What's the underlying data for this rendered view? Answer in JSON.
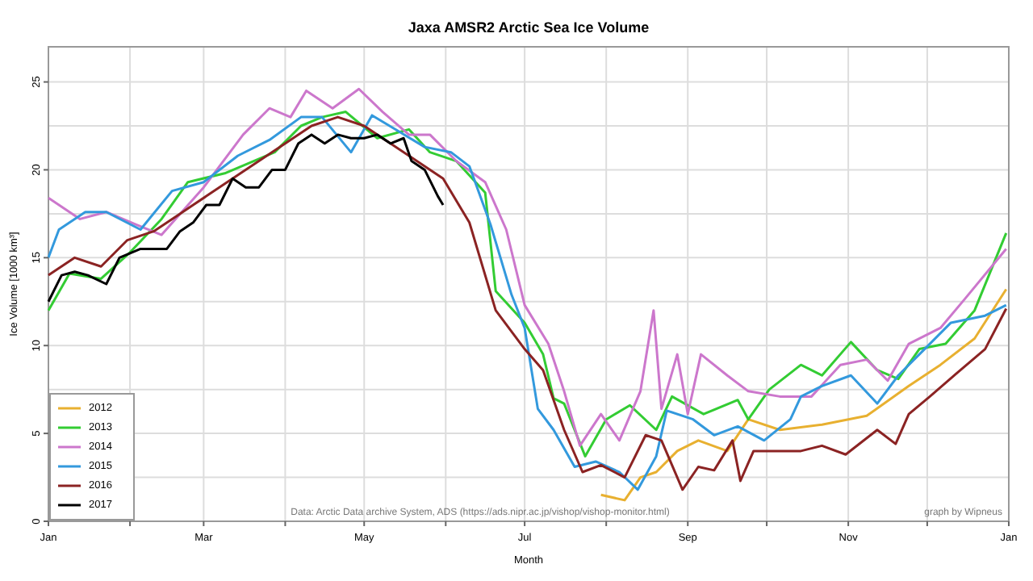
{
  "chart_data": {
    "type": "line",
    "title": "Jaxa AMSR2 Arctic Sea Ice Volume",
    "xlabel": "Month",
    "ylabel": "Ice Volume [1000 km³]",
    "annotations": [
      "Data: Arctic Data archive System, ADS (https://ads.nipr.ac.jp/vishop/vishop-monitor.html)",
      "graph by Wipneus"
    ],
    "xlim": [
      "2017-01-01",
      "2018-01-01"
    ],
    "ylim": [
      0,
      27
    ],
    "xticks": [
      {
        "value": "2017-01-01",
        "label": "Jan"
      },
      {
        "value": "2017-02-01",
        "label": null
      },
      {
        "value": "2017-03-01",
        "label": "Mar"
      },
      {
        "value": "2017-04-01",
        "label": null
      },
      {
        "value": "2017-05-01",
        "label": "May"
      },
      {
        "value": "2017-06-01",
        "label": null
      },
      {
        "value": "2017-07-01",
        "label": "Jul"
      },
      {
        "value": "2017-08-01",
        "label": null
      },
      {
        "value": "2017-09-01",
        "label": "Sep"
      },
      {
        "value": "2017-10-01",
        "label": null
      },
      {
        "value": "2017-11-01",
        "label": "Nov"
      },
      {
        "value": "2017-12-01",
        "label": null
      },
      {
        "value": "2018-01-01",
        "label": "Jan"
      }
    ],
    "yticks": [
      0,
      {
        "value": 2.5,
        "label": null
      },
      5,
      {
        "value": 7.5,
        "label": null
      },
      10,
      {
        "value": 12.5,
        "label": null
      },
      15,
      {
        "value": 17.5,
        "label": null
      },
      20,
      {
        "value": 22.5,
        "label": null
      },
      25
    ],
    "grid": true,
    "legend": "bottom left",
    "line_style": "solid",
    "marker": "none",
    "series": [
      {
        "name": "2012",
        "color": "#e8b030",
        "x": [
          "2017-07-30",
          "2017-08-08",
          "2017-08-14",
          "2017-08-20",
          "2017-08-28",
          "2017-09-05",
          "2017-09-16",
          "2017-09-24",
          "2017-10-06",
          "2017-10-22",
          "2017-11-08",
          "2017-11-24",
          "2017-12-06",
          "2017-12-19",
          "2017-12-31"
        ],
        "values": [
          1.5,
          1.2,
          2.5,
          2.8,
          4,
          4.6,
          4,
          5.8,
          5.2,
          5.5,
          6,
          7.7,
          8.9,
          10.4,
          13.2
        ]
      },
      {
        "name": "2013",
        "color": "#33cc33",
        "x": [
          "2017-01-01",
          "2017-01-09",
          "2017-01-21",
          "2017-02-01",
          "2017-02-13",
          "2017-02-23",
          "2017-03-09",
          "2017-03-28",
          "2017-04-07",
          "2017-04-15",
          "2017-04-24",
          "2017-05-06",
          "2017-05-18",
          "2017-05-26",
          "2017-06-05",
          "2017-06-16",
          "2017-06-20",
          "2017-07-01",
          "2017-07-08",
          "2017-07-12",
          "2017-07-16",
          "2017-07-24",
          "2017-08-01",
          "2017-08-10",
          "2017-08-20",
          "2017-08-26",
          "2017-09-07",
          "2017-09-20",
          "2017-09-24",
          "2017-10-02",
          "2017-10-14",
          "2017-10-22",
          "2017-11-02",
          "2017-11-12",
          "2017-11-20",
          "2017-11-28",
          "2017-12-08",
          "2017-12-19",
          "2017-12-31"
        ],
        "values": [
          12,
          14.1,
          13.8,
          15.3,
          17.2,
          19.3,
          19.8,
          21,
          22.5,
          23,
          23.3,
          21.8,
          22.3,
          21,
          20.5,
          18.7,
          13.1,
          11.3,
          9.5,
          7,
          6.7,
          3.7,
          5.8,
          6.6,
          5.2,
          7.1,
          6.1,
          6.9,
          5.8,
          7.5,
          8.9,
          8.3,
          10.2,
          8.6,
          8.1,
          9.8,
          10.1,
          12,
          16.4
        ]
      },
      {
        "name": "2014",
        "color": "#cc77cc",
        "x": [
          "2017-01-01",
          "2017-01-13",
          "2017-01-23",
          "2017-02-03",
          "2017-02-13",
          "2017-03-01",
          "2017-03-16",
          "2017-03-26",
          "2017-04-03",
          "2017-04-09",
          "2017-04-19",
          "2017-04-29",
          "2017-05-08",
          "2017-05-18",
          "2017-05-26",
          "2017-06-05",
          "2017-06-16",
          "2017-06-24",
          "2017-07-01",
          "2017-07-10",
          "2017-07-16",
          "2017-07-22",
          "2017-07-30",
          "2017-08-06",
          "2017-08-14",
          "2017-08-19",
          "2017-08-22",
          "2017-08-28",
          "2017-09-01",
          "2017-09-06",
          "2017-09-16",
          "2017-09-24",
          "2017-10-06",
          "2017-10-18",
          "2017-10-29",
          "2017-11-08",
          "2017-11-16",
          "2017-11-24",
          "2017-12-06",
          "2017-12-15",
          "2017-12-31"
        ],
        "values": [
          18.4,
          17.2,
          17.6,
          16.9,
          16.3,
          19,
          22,
          23.5,
          23,
          24.5,
          23.5,
          24.6,
          23.3,
          22,
          22,
          20.5,
          19.3,
          16.6,
          12.3,
          10.1,
          7.4,
          4.3,
          6.1,
          4.6,
          7.4,
          12,
          6.4,
          9.5,
          6.1,
          9.5,
          8.3,
          7.4,
          7.1,
          7.1,
          8.9,
          9.2,
          8,
          10.1,
          11,
          12.6,
          15.5
        ]
      },
      {
        "name": "2015",
        "color": "#3399dd",
        "x": [
          "2017-01-01",
          "2017-01-05",
          "2017-01-15",
          "2017-01-23",
          "2017-02-05",
          "2017-02-17",
          "2017-03-01",
          "2017-03-14",
          "2017-03-26",
          "2017-04-07",
          "2017-04-15",
          "2017-04-26",
          "2017-05-04",
          "2017-05-14",
          "2017-05-24",
          "2017-06-03",
          "2017-06-10",
          "2017-06-18",
          "2017-06-26",
          "2017-07-01",
          "2017-07-06",
          "2017-07-12",
          "2017-07-20",
          "2017-07-28",
          "2017-08-06",
          "2017-08-13",
          "2017-08-20",
          "2017-08-24",
          "2017-09-03",
          "2017-09-11",
          "2017-09-20",
          "2017-09-30",
          "2017-10-10",
          "2017-10-14",
          "2017-10-22",
          "2017-11-02",
          "2017-11-12",
          "2017-11-20",
          "2017-11-30",
          "2017-12-10",
          "2017-12-23",
          "2017-12-31"
        ],
        "values": [
          15,
          16.6,
          17.6,
          17.6,
          16.6,
          18.8,
          19.3,
          20.8,
          21.7,
          23,
          23,
          21,
          23.1,
          22.2,
          21.3,
          21,
          20.2,
          16.9,
          12.9,
          11,
          6.4,
          5.2,
          3.1,
          3.4,
          2.8,
          1.8,
          3.7,
          6.3,
          5.8,
          4.9,
          5.4,
          4.6,
          5.8,
          7.1,
          7.7,
          8.3,
          6.7,
          8.3,
          9.8,
          11.3,
          11.7,
          12.3
        ]
      },
      {
        "name": "2016",
        "color": "#8b2323",
        "x": [
          "2017-01-01",
          "2017-01-11",
          "2017-01-21",
          "2017-01-31",
          "2017-02-10",
          "2017-02-20",
          "2017-03-02",
          "2017-03-12",
          "2017-03-22",
          "2017-04-01",
          "2017-04-11",
          "2017-04-21",
          "2017-05-01",
          "2017-05-11",
          "2017-05-21",
          "2017-05-31",
          "2017-06-10",
          "2017-06-20",
          "2017-07-01",
          "2017-07-08",
          "2017-07-16",
          "2017-07-23",
          "2017-07-30",
          "2017-08-08",
          "2017-08-16",
          "2017-08-22",
          "2017-08-30",
          "2017-09-05",
          "2017-09-11",
          "2017-09-18",
          "2017-09-21",
          "2017-09-26",
          "2017-10-06",
          "2017-10-14",
          "2017-10-22",
          "2017-10-31",
          "2017-11-12",
          "2017-11-19",
          "2017-11-24",
          "2017-12-02",
          "2017-12-12",
          "2017-12-23",
          "2017-12-31"
        ],
        "values": [
          14,
          15,
          14.5,
          16,
          16.5,
          17.5,
          18.5,
          19.5,
          20.5,
          21.5,
          22.5,
          23,
          22.5,
          21.5,
          20.5,
          19.5,
          17,
          12,
          9.8,
          8.6,
          5.2,
          2.8,
          3.2,
          2.5,
          4.9,
          4.6,
          1.8,
          3.1,
          2.9,
          4.6,
          2.3,
          4,
          4,
          4,
          4.3,
          3.8,
          5.2,
          4.4,
          6.1,
          7.1,
          8.4,
          9.8,
          12.1
        ]
      },
      {
        "name": "2017",
        "color": "#000000",
        "x": [
          "2017-01-01",
          "2017-01-06",
          "2017-01-11",
          "2017-01-16",
          "2017-01-23",
          "2017-01-28",
          "2017-02-05",
          "2017-02-15",
          "2017-02-20",
          "2017-02-25",
          "2017-03-02",
          "2017-03-07",
          "2017-03-12",
          "2017-03-17",
          "2017-03-22",
          "2017-03-27",
          "2017-04-01",
          "2017-04-06",
          "2017-04-11",
          "2017-04-16",
          "2017-04-21",
          "2017-04-26",
          "2017-05-01",
          "2017-05-06",
          "2017-05-11",
          "2017-05-16",
          "2017-05-19",
          "2017-05-24",
          "2017-05-29",
          "2017-05-31"
        ],
        "values": [
          12.5,
          14,
          14.2,
          14,
          13.5,
          15,
          15.5,
          15.5,
          16.5,
          17,
          18,
          18,
          19.5,
          19,
          19,
          20,
          20,
          21.5,
          22,
          21.5,
          22,
          21.8,
          21.8,
          22,
          21.5,
          21.8,
          20.5,
          20,
          18.5,
          18
        ]
      }
    ]
  }
}
